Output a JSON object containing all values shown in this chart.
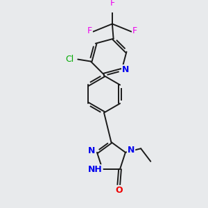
{
  "bg_color": "#e8eaec",
  "bond_color": "#1a1a1a",
  "N_color": "#0000ee",
  "O_color": "#ee0000",
  "Cl_color": "#00aa00",
  "F_color": "#ee00ee",
  "line_width": 1.4,
  "figsize": [
    3.0,
    3.0
  ],
  "dpi": 100,
  "xlim": [
    -2.8,
    2.8
  ],
  "ylim": [
    -3.8,
    3.8
  ]
}
